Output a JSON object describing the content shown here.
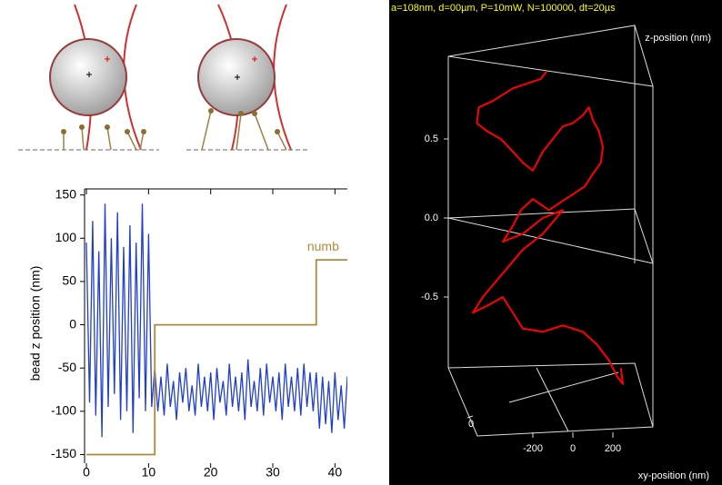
{
  "chart_data": [
    {
      "type": "line",
      "ylabel": "bead z position (nm)",
      "xlim": [
        -0.3,
        42
      ],
      "ylim": [
        -160,
        157
      ],
      "xticks": [
        0,
        10,
        20,
        30,
        40
      ],
      "yticks": [
        -150,
        -100,
        -50,
        0,
        50,
        100,
        150
      ],
      "series": [
        {
          "color": "#1f3fcc",
          "x": [
            0,
            0.5,
            1,
            1.5,
            2,
            2.5,
            3,
            3.5,
            4,
            4.5,
            5,
            5.5,
            6,
            6.5,
            7,
            7.5,
            8,
            8.5,
            9,
            9.5,
            10,
            10.5,
            11,
            11.5,
            12,
            12.5,
            13,
            13.5,
            14,
            14.5,
            15,
            15.5,
            16,
            16.5,
            17,
            17.5,
            18,
            18.5,
            19,
            19.5,
            20,
            20.5,
            21,
            21.5,
            22,
            22.5,
            23,
            23.5,
            24,
            24.5,
            25,
            25.5,
            26,
            26.5,
            27,
            27.5,
            28,
            28.5,
            29,
            29.5,
            30,
            30.5,
            31,
            31.5,
            32,
            32.5,
            33,
            33.5,
            34,
            34.5,
            35,
            35.5,
            36,
            36.5,
            37,
            37.5,
            38,
            38.5,
            39,
            39.5,
            40,
            40.5,
            41,
            41.5,
            42
          ],
          "values": [
            95,
            -90,
            120,
            -105,
            85,
            -130,
            140,
            -95,
            100,
            -80,
            130,
            -110,
            90,
            -100,
            115,
            -125,
            95,
            -85,
            140,
            -100,
            105,
            -95,
            -50,
            -100,
            -60,
            -105,
            -45,
            -95,
            -65,
            -110,
            -55,
            -90,
            -50,
            -100,
            -70,
            -105,
            -45,
            -95,
            -60,
            -100,
            -55,
            -110,
            -50,
            -90,
            -65,
            -105,
            -45,
            -95,
            -60,
            -100,
            -55,
            -110,
            -40,
            -95,
            -65,
            -100,
            -50,
            -105,
            -45,
            -90,
            -60,
            -100,
            -55,
            -110,
            -45,
            -95,
            -60,
            -100,
            -50,
            -105,
            -45,
            -95,
            -55,
            -100,
            -55,
            -120,
            -60,
            -115,
            -65,
            -125,
            -55,
            -110,
            -70,
            -120,
            -60
          ]
        },
        {
          "name": "numb",
          "color": "#b08a3a",
          "x": [
            0,
            11,
            11,
            37,
            37,
            42
          ],
          "values": [
            -150,
            -150,
            0,
            0,
            75,
            75
          ]
        }
      ]
    },
    {
      "type": "line3d",
      "title": "a=108nm, d=00µm, P=10mW, N=100000, dt=20µs",
      "zlabel": "z-position (nm)",
      "xlabel": "xy-position (nm)",
      "zticks": [
        0.5,
        {
          "value": 0,
          "label": "0.0"
        },
        -0.5
      ],
      "xticks": [
        -200,
        0,
        200
      ],
      "depthticks": [
        0
      ],
      "series": [
        {
          "color": "#ff0000",
          "x": [
            -130,
            -160,
            -230,
            -300,
            -400,
            -470,
            -480,
            -430,
            -360,
            -300,
            -250,
            -200,
            -150,
            -100,
            -50,
            0,
            50,
            80,
            100,
            130,
            150,
            140,
            100,
            60,
            0,
            -60,
            -120,
            -200,
            -260,
            -300,
            -350,
            -250,
            -150,
            -50,
            -150,
            -250,
            -350,
            -450,
            -500,
            -420,
            -350,
            -300,
            -250,
            -150,
            -50,
            50,
            120,
            180,
            220,
            250,
            240
          ],
          "z": [
            0.93,
            0.88,
            0.85,
            0.82,
            0.74,
            0.7,
            0.6,
            0.55,
            0.5,
            0.42,
            0.35,
            0.3,
            0.42,
            0.5,
            0.58,
            0.6,
            0.65,
            0.7,
            0.62,
            0.55,
            0.45,
            0.35,
            0.28,
            0.2,
            0.15,
            0.1,
            0.05,
            0.12,
            0.05,
            -0.05,
            -0.15,
            -0.1,
            0.0,
            0.05,
            -0.1,
            -0.2,
            -0.35,
            -0.5,
            -0.6,
            -0.55,
            -0.5,
            -0.6,
            -0.7,
            -0.72,
            -0.68,
            -0.72,
            -0.8,
            -0.9,
            -1.0,
            -1.05,
            -0.95
          ]
        }
      ]
    }
  ]
}
